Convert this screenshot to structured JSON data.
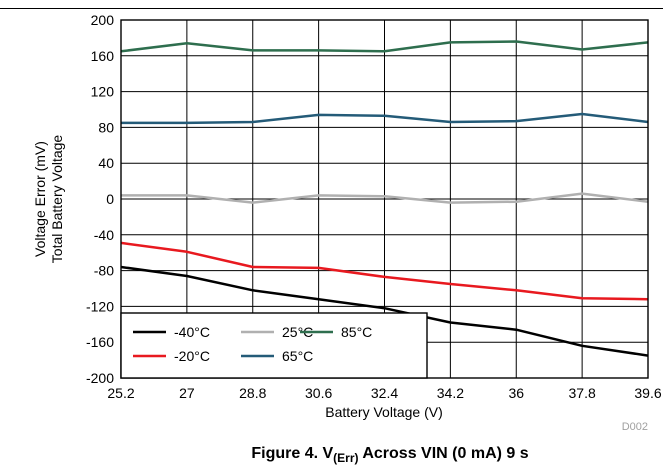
{
  "chart_data": {
    "type": "line",
    "x": [
      25.2,
      27,
      28.8,
      30.6,
      32.4,
      34.2,
      36,
      37.8,
      39.6
    ],
    "x_tick_labels": [
      "25.2",
      "27",
      "28.8",
      "30.6",
      "32.4",
      "34.2",
      "36",
      "37.8",
      "39.6"
    ],
    "xlim": [
      25.2,
      39.6
    ],
    "y_ticks": [
      200,
      160,
      120,
      80,
      40,
      0,
      -40,
      -80,
      -120,
      -160,
      -200
    ],
    "y_tick_labels": [
      "200",
      "160",
      "120",
      "80",
      "40",
      "0",
      "-40",
      "-80",
      "-120",
      "-160",
      "-200"
    ],
    "ylim": [
      -200,
      200
    ],
    "xlabel": "Battery Voltage (V)",
    "ylabel_line1": "Voltage Error (mV)",
    "ylabel_line2": "Total Battery Voltage",
    "grid": true,
    "legend_position": "bottom-left",
    "series": [
      {
        "name": "-40°C",
        "color": "#000000",
        "values": [
          -76,
          -86,
          -102,
          -112,
          -122,
          -138,
          -146,
          -164,
          -175
        ]
      },
      {
        "name": "25°C",
        "color": "#b0b0b0",
        "values": [
          4,
          4,
          -4,
          4,
          3,
          -4,
          -3,
          6,
          -3
        ]
      },
      {
        "name": "85°C",
        "color": "#2e6e4e",
        "values": [
          165,
          174,
          166,
          166,
          165,
          175,
          176,
          167,
          175
        ]
      },
      {
        "name": "-20°C",
        "color": "#e8191f",
        "values": [
          -49,
          -59,
          -76,
          -77,
          -87,
          -95,
          -102,
          -111,
          -112
        ]
      },
      {
        "name": "65°C",
        "color": "#245b78",
        "values": [
          85,
          85,
          86,
          94,
          93,
          86,
          87,
          95,
          86
        ]
      }
    ]
  },
  "figure": {
    "caption_prefix": "Figure 4. V",
    "caption_subscript": "(Err)",
    "caption_suffix": " Across VIN (0 mA) 9 s",
    "code": "D002"
  }
}
